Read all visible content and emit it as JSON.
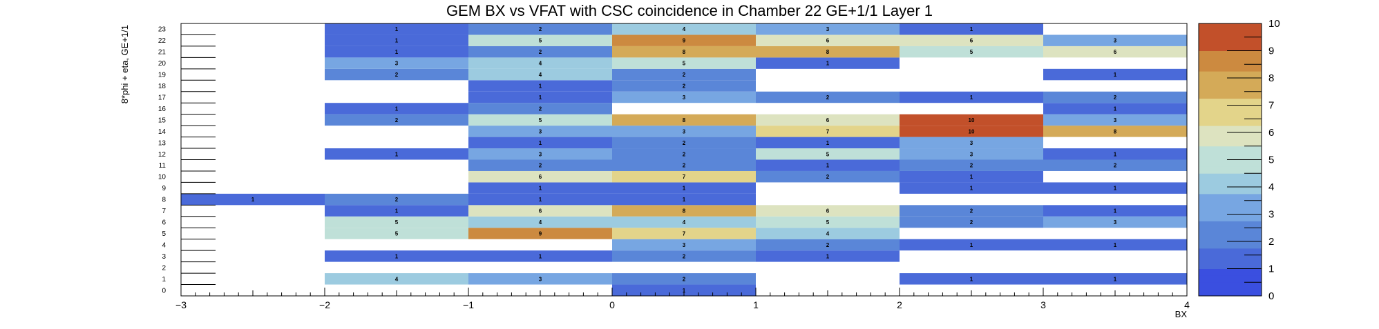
{
  "chart_data": {
    "type": "heatmap",
    "title": "GEM BX vs VFAT with CSC coincidence in Chamber 22 GE+1/1 Layer 1",
    "xlabel": "BX",
    "ylabel": "8*phi + eta, GE+1/1",
    "xlim": [
      -3,
      4
    ],
    "ylim": [
      0,
      24
    ],
    "zlim": [
      0,
      10
    ],
    "x_ticks": [
      -3,
      -2,
      -1,
      0,
      1,
      2,
      3,
      4
    ],
    "x_tick_labels": [
      "−3",
      "−2",
      "−1",
      "0",
      "1",
      "2",
      "3",
      "4"
    ],
    "z_ticks": [
      0,
      1,
      2,
      3,
      4,
      5,
      6,
      7,
      8,
      9,
      10
    ],
    "y_bins": [
      0,
      1,
      2,
      3,
      4,
      5,
      6,
      7,
      8,
      9,
      10,
      11,
      12,
      13,
      14,
      15,
      16,
      17,
      18,
      19,
      20,
      21,
      22,
      23
    ],
    "palette": [
      "#3a4fe0",
      "#4a6ad9",
      "#5a86d8",
      "#77a6e2",
      "#9ccbe0",
      "#bfe0d8",
      "#dde3c0",
      "#e3d48a",
      "#d4aa58",
      "#cc8a40",
      "#c2502a"
    ],
    "cells": [
      {
        "x": -2.5,
        "y": 8,
        "v": 1
      },
      {
        "x": -1.5,
        "y": 1,
        "v": 4
      },
      {
        "x": -1.5,
        "y": 3,
        "v": 1
      },
      {
        "x": -1.5,
        "y": 5,
        "v": 5
      },
      {
        "x": -1.5,
        "y": 6,
        "v": 5
      },
      {
        "x": -1.5,
        "y": 7,
        "v": 1
      },
      {
        "x": -1.5,
        "y": 8,
        "v": 2
      },
      {
        "x": -1.5,
        "y": 12,
        "v": 1
      },
      {
        "x": -1.5,
        "y": 15,
        "v": 2
      },
      {
        "x": -1.5,
        "y": 16,
        "v": 1
      },
      {
        "x": -1.5,
        "y": 19,
        "v": 2
      },
      {
        "x": -1.5,
        "y": 20,
        "v": 3
      },
      {
        "x": -1.5,
        "y": 21,
        "v": 1
      },
      {
        "x": -1.5,
        "y": 22,
        "v": 1
      },
      {
        "x": -1.5,
        "y": 23,
        "v": 1
      },
      {
        "x": -0.5,
        "y": 1,
        "v": 3
      },
      {
        "x": -0.5,
        "y": 3,
        "v": 1
      },
      {
        "x": -0.5,
        "y": 5,
        "v": 9
      },
      {
        "x": -0.5,
        "y": 6,
        "v": 4
      },
      {
        "x": -0.5,
        "y": 7,
        "v": 6
      },
      {
        "x": -0.5,
        "y": 8,
        "v": 1
      },
      {
        "x": -0.5,
        "y": 9,
        "v": 1
      },
      {
        "x": -0.5,
        "y": 10,
        "v": 6
      },
      {
        "x": -0.5,
        "y": 11,
        "v": 2
      },
      {
        "x": -0.5,
        "y": 12,
        "v": 3
      },
      {
        "x": -0.5,
        "y": 13,
        "v": 1
      },
      {
        "x": -0.5,
        "y": 14,
        "v": 3
      },
      {
        "x": -0.5,
        "y": 15,
        "v": 5
      },
      {
        "x": -0.5,
        "y": 16,
        "v": 2
      },
      {
        "x": -0.5,
        "y": 17,
        "v": 1
      },
      {
        "x": -0.5,
        "y": 18,
        "v": 1
      },
      {
        "x": -0.5,
        "y": 19,
        "v": 4
      },
      {
        "x": -0.5,
        "y": 20,
        "v": 4
      },
      {
        "x": -0.5,
        "y": 21,
        "v": 2
      },
      {
        "x": -0.5,
        "y": 22,
        "v": 5
      },
      {
        "x": -0.5,
        "y": 23,
        "v": 2
      },
      {
        "x": 0.5,
        "y": 0,
        "v": 1
      },
      {
        "x": 0.5,
        "y": 1,
        "v": 2
      },
      {
        "x": 0.5,
        "y": 3,
        "v": 2
      },
      {
        "x": 0.5,
        "y": 4,
        "v": 3
      },
      {
        "x": 0.5,
        "y": 5,
        "v": 7
      },
      {
        "x": 0.5,
        "y": 6,
        "v": 4
      },
      {
        "x": 0.5,
        "y": 7,
        "v": 8
      },
      {
        "x": 0.5,
        "y": 8,
        "v": 1
      },
      {
        "x": 0.5,
        "y": 9,
        "v": 1
      },
      {
        "x": 0.5,
        "y": 10,
        "v": 7
      },
      {
        "x": 0.5,
        "y": 11,
        "v": 2
      },
      {
        "x": 0.5,
        "y": 12,
        "v": 2
      },
      {
        "x": 0.5,
        "y": 13,
        "v": 2
      },
      {
        "x": 0.5,
        "y": 14,
        "v": 3
      },
      {
        "x": 0.5,
        "y": 15,
        "v": 8
      },
      {
        "x": 0.5,
        "y": 17,
        "v": 3
      },
      {
        "x": 0.5,
        "y": 18,
        "v": 2
      },
      {
        "x": 0.5,
        "y": 19,
        "v": 2
      },
      {
        "x": 0.5,
        "y": 20,
        "v": 5
      },
      {
        "x": 0.5,
        "y": 21,
        "v": 8
      },
      {
        "x": 0.5,
        "y": 22,
        "v": 9
      },
      {
        "x": 0.5,
        "y": 23,
        "v": 4
      },
      {
        "x": 1.5,
        "y": 3,
        "v": 1
      },
      {
        "x": 1.5,
        "y": 4,
        "v": 2
      },
      {
        "x": 1.5,
        "y": 5,
        "v": 4
      },
      {
        "x": 1.5,
        "y": 6,
        "v": 5
      },
      {
        "x": 1.5,
        "y": 7,
        "v": 6
      },
      {
        "x": 1.5,
        "y": 10,
        "v": 2
      },
      {
        "x": 1.5,
        "y": 11,
        "v": 1
      },
      {
        "x": 1.5,
        "y": 12,
        "v": 5
      },
      {
        "x": 1.5,
        "y": 13,
        "v": 1
      },
      {
        "x": 1.5,
        "y": 14,
        "v": 7
      },
      {
        "x": 1.5,
        "y": 15,
        "v": 6
      },
      {
        "x": 1.5,
        "y": 17,
        "v": 2
      },
      {
        "x": 1.5,
        "y": 20,
        "v": 1
      },
      {
        "x": 1.5,
        "y": 21,
        "v": 8
      },
      {
        "x": 1.5,
        "y": 22,
        "v": 6
      },
      {
        "x": 1.5,
        "y": 23,
        "v": 3
      },
      {
        "x": 2.5,
        "y": 1,
        "v": 1
      },
      {
        "x": 2.5,
        "y": 4,
        "v": 1
      },
      {
        "x": 2.5,
        "y": 6,
        "v": 2
      },
      {
        "x": 2.5,
        "y": 7,
        "v": 2
      },
      {
        "x": 2.5,
        "y": 9,
        "v": 1
      },
      {
        "x": 2.5,
        "y": 10,
        "v": 1
      },
      {
        "x": 2.5,
        "y": 11,
        "v": 2
      },
      {
        "x": 2.5,
        "y": 12,
        "v": 3
      },
      {
        "x": 2.5,
        "y": 13,
        "v": 3
      },
      {
        "x": 2.5,
        "y": 14,
        "v": 10
      },
      {
        "x": 2.5,
        "y": 15,
        "v": 10
      },
      {
        "x": 2.5,
        "y": 17,
        "v": 1
      },
      {
        "x": 2.5,
        "y": 21,
        "v": 5
      },
      {
        "x": 2.5,
        "y": 22,
        "v": 6
      },
      {
        "x": 2.5,
        "y": 23,
        "v": 1
      },
      {
        "x": 3.5,
        "y": 1,
        "v": 1
      },
      {
        "x": 3.5,
        "y": 4,
        "v": 1
      },
      {
        "x": 3.5,
        "y": 6,
        "v": 3
      },
      {
        "x": 3.5,
        "y": 7,
        "v": 1
      },
      {
        "x": 3.5,
        "y": 9,
        "v": 1
      },
      {
        "x": 3.5,
        "y": 11,
        "v": 2
      },
      {
        "x": 3.5,
        "y": 12,
        "v": 1
      },
      {
        "x": 3.5,
        "y": 14,
        "v": 8
      },
      {
        "x": 3.5,
        "y": 15,
        "v": 3
      },
      {
        "x": 3.5,
        "y": 16,
        "v": 1
      },
      {
        "x": 3.5,
        "y": 17,
        "v": 2
      },
      {
        "x": 3.5,
        "y": 19,
        "v": 1
      },
      {
        "x": 3.5,
        "y": 21,
        "v": 6
      },
      {
        "x": 3.5,
        "y": 22,
        "v": 3
      }
    ]
  }
}
